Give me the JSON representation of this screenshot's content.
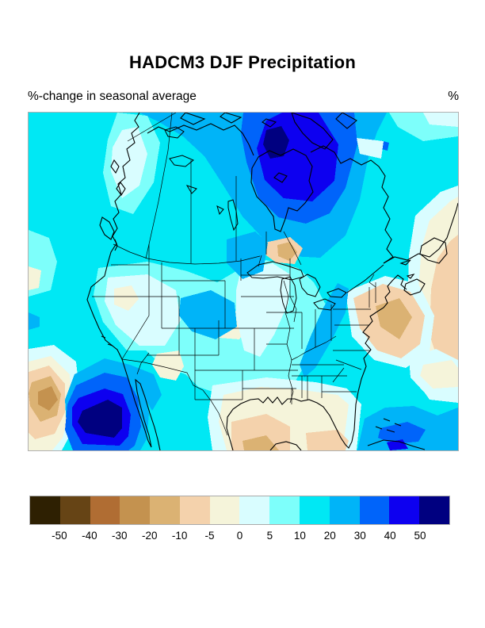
{
  "page": {
    "title": "HADCM3 DJF Precipitation",
    "subtitle": "%-change in seasonal average",
    "unit": "%"
  },
  "palette": {
    "m50": "#2e2002",
    "m40": "#664415",
    "m30": "#b06d33",
    "m20": "#c4924f",
    "m10": "#dbb273",
    "m5": "#f4d2ac",
    "m0": "#f5f4da",
    "p0": "#d9fdff",
    "p5": "#7dfffb",
    "p10": "#00e8f4",
    "p20": "#00b4f8",
    "p30": "#0064fa",
    "p40": "#0d00f0",
    "p50": "#000080"
  },
  "colorbar": {
    "band_keys": [
      "m50",
      "m40",
      "m30",
      "m20",
      "m10",
      "m5",
      "m0",
      "p0",
      "p5",
      "p10",
      "p20",
      "p30",
      "p40",
      "p50"
    ],
    "tick_labels": [
      "-50",
      "-40",
      "-30",
      "-20",
      "-10",
      "-5",
      "0",
      "5",
      "10",
      "20",
      "30",
      "40",
      "50"
    ]
  },
  "chart_data": {
    "type": "heatmap",
    "title": "HADCM3 DJF Precipitation",
    "subtitle": "%-change in seasonal average",
    "units": "%",
    "region": "North America (contour map, filled bands)",
    "levels": [
      -50,
      -40,
      -30,
      -20,
      -10,
      -5,
      0,
      5,
      10,
      20,
      30,
      40,
      50
    ],
    "legend_position": "bottom",
    "features": [
      {
        "area": "background over most of map",
        "value_pct": "10 to 20"
      },
      {
        "area": "Hudson Bay / north-central Canada blob",
        "value_pct": "40 to >50 (navy core)"
      },
      {
        "area": "Arctic Canada along top edge",
        "value_pct": "20 to 40"
      },
      {
        "area": "Pacific off Baja California blob",
        "value_pct": "40 to >50 (navy core)"
      },
      {
        "area": "Colorado / Nebraska plains patch",
        "value_pct": "20 to 30"
      },
      {
        "area": "Minnesota / Manitoba patch",
        "value_pct": "20 to 30"
      },
      {
        "area": "Appalachians PA-TN streak",
        "value_pct": "20 to 30"
      },
      {
        "area": "Caribbean near Cuba",
        "value_pct": "20 to 40"
      },
      {
        "area": "Great Basin and Midwest interior",
        "value_pct": "0 to 10"
      },
      {
        "area": "Nevada, New Mexico, Texas panhandle spots",
        "value_pct": "-5 to 0"
      },
      {
        "area": "Gulf of Mexico coast band",
        "value_pct": "-10 to 0"
      },
      {
        "area": "Lake Superior spot",
        "value_pct": "-20 to -5"
      },
      {
        "area": "Atlantic off the Carolinas",
        "value_pct": "-20 to -5"
      },
      {
        "area": "NE Pacific lower-left diamond",
        "value_pct": "-30 to -5"
      },
      {
        "area": "Atlantic near Newfoundland (right edge band)",
        "value_pct": "-10 to 0"
      }
    ]
  }
}
